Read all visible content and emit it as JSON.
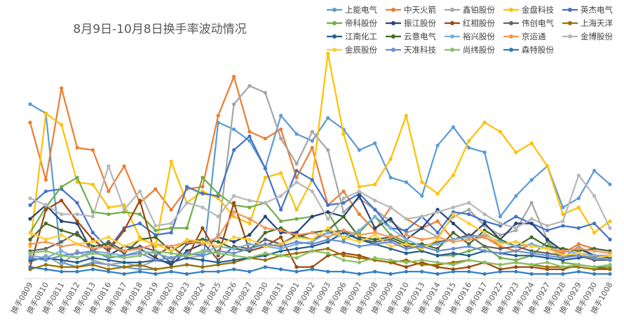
{
  "chart_data": {
    "type": "line",
    "title": "8月9日-10月8日换手率波动情况",
    "xlabel": "",
    "ylabel": "",
    "ylim": [
      0,
      1
    ],
    "grid": false,
    "legend": "top-right",
    "categories": [
      "换手0809",
      "换手0810",
      "换手0811",
      "换手0812",
      "换手0813",
      "换手0816",
      "换手0817",
      "换手0818",
      "换手0819",
      "换手0820",
      "换手0823",
      "换手0824",
      "换手0825",
      "换手0826",
      "换手0827",
      "换手0830",
      "换手0831",
      "换手0901",
      "换手0902",
      "换手0903",
      "换手0906",
      "换手0907",
      "换手0908",
      "换手0909",
      "换手0910",
      "换手0913",
      "换手0914",
      "换手0915",
      "换手0916",
      "换手0917",
      "换手0922",
      "换手0923",
      "换手0924",
      "换手0927",
      "换手0928",
      "换手0929",
      "换手0930",
      "换手1008"
    ],
    "series": [
      {
        "name": "上能电气",
        "color": "#5B9BD5",
        "values": [
          0.76,
          0.72,
          0.07,
          0.05,
          0.07,
          0.06,
          0.05,
          0.04,
          0.04,
          0.05,
          0.06,
          0.05,
          0.68,
          0.65,
          0.6,
          0.48,
          0.71,
          0.63,
          0.6,
          0.7,
          0.65,
          0.56,
          0.59,
          0.44,
          0.42,
          0.36,
          0.58,
          0.66,
          0.57,
          0.55,
          0.27,
          0.36,
          0.43,
          0.49,
          0.31,
          0.35,
          0.47,
          0.41
        ]
      },
      {
        "name": "中天火箭",
        "color": "#ED7D31",
        "values": [
          0.68,
          0.43,
          0.83,
          0.57,
          0.56,
          0.38,
          0.49,
          0.33,
          0.39,
          0.3,
          0.39,
          0.4,
          0.71,
          0.88,
          0.64,
          0.61,
          0.65,
          0.44,
          0.57,
          0.32,
          0.38,
          0.28,
          0.21,
          0.31,
          0.26,
          0.22,
          0.25,
          0.17,
          0.19,
          0.18,
          0.14,
          0.12,
          0.15,
          0.13,
          0.11,
          0.15,
          0.13,
          0.12
        ]
      },
      {
        "name": "鑫铂股份",
        "color": "#A5A5A5",
        "values": [
          0.07,
          0.1,
          0.06,
          0.12,
          0.08,
          0.06,
          0.07,
          0.05,
          0.08,
          0.07,
          0.09,
          0.1,
          0.19,
          0.76,
          0.84,
          0.81,
          0.61,
          0.5,
          0.64,
          0.56,
          0.29,
          0.35,
          0.3,
          0.25,
          0.2,
          0.22,
          0.18,
          0.27,
          0.3,
          0.23,
          0.19,
          0.21,
          0.33,
          0.17,
          0.09,
          0.14,
          0.1,
          0.08
        ]
      },
      {
        "name": "金盘科技",
        "color": "#FFC000",
        "values": [
          0.14,
          0.72,
          0.67,
          0.42,
          0.41,
          0.31,
          0.32,
          0.18,
          0.14,
          0.51,
          0.33,
          0.38,
          0.35,
          0.27,
          0.24,
          0.44,
          0.46,
          0.3,
          0.43,
          0.98,
          0.63,
          0.4,
          0.41,
          0.52,
          0.71,
          0.42,
          0.37,
          0.45,
          0.6,
          0.68,
          0.64,
          0.55,
          0.59,
          0.49,
          0.28,
          0.31,
          0.2,
          0.25
        ]
      },
      {
        "name": "英杰电气",
        "color": "#4472C4",
        "values": [
          0.32,
          0.38,
          0.39,
          0.33,
          0.2,
          0.13,
          0.22,
          0.24,
          0.19,
          0.2,
          0.4,
          0.37,
          0.36,
          0.56,
          0.62,
          0.48,
          0.3,
          0.47,
          0.43,
          0.32,
          0.33,
          0.37,
          0.3,
          0.22,
          0.21,
          0.27,
          0.2,
          0.29,
          0.28,
          0.25,
          0.23,
          0.27,
          0.24,
          0.21,
          0.23,
          0.22,
          0.24,
          0.17
        ]
      },
      {
        "name": "帝科股份",
        "color": "#70AD47",
        "values": [
          0.2,
          0.31,
          0.4,
          0.44,
          0.29,
          0.28,
          0.29,
          0.28,
          0.21,
          0.22,
          0.22,
          0.44,
          0.37,
          0.32,
          0.31,
          0.33,
          0.25,
          0.26,
          0.27,
          0.29,
          0.17,
          0.2,
          0.27,
          0.19,
          0.16,
          0.12,
          0.1,
          0.1,
          0.12,
          0.14,
          0.09,
          0.08,
          0.1,
          0.16,
          0.07,
          0.06,
          0.05,
          0.05
        ]
      },
      {
        "name": "振江股份",
        "color": "#264478",
        "values": [
          0.26,
          0.32,
          0.25,
          0.24,
          0.11,
          0.1,
          0.14,
          0.13,
          0.09,
          0.06,
          0.12,
          0.15,
          0.18,
          0.16,
          0.19,
          0.27,
          0.2,
          0.2,
          0.27,
          0.29,
          0.27,
          0.36,
          0.22,
          0.26,
          0.17,
          0.22,
          0.3,
          0.24,
          0.18,
          0.24,
          0.17,
          0.24,
          0.24,
          0.17,
          0.12,
          0.13,
          0.1,
          0.1
        ]
      },
      {
        "name": "红相股份",
        "color": "#9E480E",
        "values": [
          0.05,
          0.3,
          0.34,
          0.25,
          0.17,
          0.12,
          0.21,
          0.34,
          0.1,
          0.14,
          0.09,
          0.22,
          0.1,
          0.33,
          0.12,
          0.14,
          0.18,
          0.05,
          0.05,
          0.1,
          0.11,
          0.1,
          0.08,
          0.07,
          0.05,
          0.07,
          0.05,
          0.04,
          0.05,
          0.07,
          0.04,
          0.05,
          0.05,
          0.04,
          0.04,
          0.06,
          0.05,
          0.04
        ]
      },
      {
        "name": "伟创电气",
        "color": "#636363",
        "values": [
          0.12,
          0.13,
          0.16,
          0.2,
          0.12,
          0.16,
          0.12,
          0.14,
          0.12,
          0.07,
          0.15,
          0.16,
          0.08,
          0.14,
          0.13,
          0.17,
          0.15,
          0.19,
          0.17,
          0.2,
          0.21,
          0.17,
          0.16,
          0.17,
          0.14,
          0.14,
          0.16,
          0.17,
          0.19,
          0.14,
          0.13,
          0.14,
          0.12,
          0.11,
          0.1,
          0.1,
          0.08,
          0.08
        ]
      },
      {
        "name": "上海天洋",
        "color": "#997300",
        "values": [
          0.04,
          0.06,
          0.05,
          0.05,
          0.06,
          0.04,
          0.05,
          0.06,
          0.04,
          0.05,
          0.06,
          0.05,
          0.06,
          0.07,
          0.09,
          0.08,
          0.1,
          0.11,
          0.12,
          0.13,
          0.1,
          0.09,
          0.08,
          0.07,
          0.08,
          0.06,
          0.06,
          0.07,
          0.08,
          0.07,
          0.06,
          0.07,
          0.06,
          0.05,
          0.05,
          0.05,
          0.04,
          0.04
        ]
      },
      {
        "name": "江南化工",
        "color": "#255E91",
        "values": [
          0.08,
          0.09,
          0.08,
          0.07,
          0.09,
          0.08,
          0.07,
          0.07,
          0.08,
          0.07,
          0.09,
          0.08,
          0.07,
          0.08,
          0.09,
          0.1,
          0.12,
          0.13,
          0.14,
          0.16,
          0.2,
          0.17,
          0.15,
          0.13,
          0.11,
          0.12,
          0.1,
          0.11,
          0.1,
          0.12,
          0.11,
          0.1,
          0.1,
          0.09,
          0.08,
          0.09,
          0.1,
          0.09
        ]
      },
      {
        "name": "云意电气",
        "color": "#43682B",
        "values": [
          0.17,
          0.24,
          0.21,
          0.19,
          0.14,
          0.15,
          0.11,
          0.17,
          0.18,
          0.12,
          0.16,
          0.17,
          0.16,
          0.13,
          0.12,
          0.2,
          0.22,
          0.18,
          0.2,
          0.21,
          0.27,
          0.18,
          0.17,
          0.18,
          0.15,
          0.15,
          0.13,
          0.2,
          0.15,
          0.21,
          0.17,
          0.14,
          0.18,
          0.14,
          0.13,
          0.12,
          0.13,
          0.12
        ]
      },
      {
        "name": "裕兴股份",
        "color": "#7CAFDD",
        "values": [
          0.1,
          0.09,
          0.12,
          0.09,
          0.12,
          0.11,
          0.1,
          0.12,
          0.11,
          0.09,
          0.1,
          0.11,
          0.14,
          0.13,
          0.15,
          0.14,
          0.13,
          0.15,
          0.16,
          0.2,
          0.18,
          0.21,
          0.27,
          0.22,
          0.17,
          0.14,
          0.15,
          0.17,
          0.18,
          0.19,
          0.16,
          0.14,
          0.15,
          0.13,
          0.12,
          0.11,
          0.1,
          0.1
        ]
      },
      {
        "name": "京运通",
        "color": "#F1975A",
        "values": [
          0.15,
          0.16,
          0.14,
          0.15,
          0.13,
          0.14,
          0.12,
          0.13,
          0.15,
          0.14,
          0.16,
          0.15,
          0.18,
          0.29,
          0.26,
          0.22,
          0.21,
          0.19,
          0.2,
          0.18,
          0.21,
          0.19,
          0.2,
          0.18,
          0.19,
          0.17,
          0.18,
          0.16,
          0.17,
          0.18,
          0.15,
          0.16,
          0.14,
          0.13,
          0.12,
          0.13,
          0.12,
          0.11
        ]
      },
      {
        "name": "金博股份",
        "color": "#B7B7B7",
        "values": [
          0.35,
          0.32,
          0.28,
          0.28,
          0.27,
          0.49,
          0.3,
          0.38,
          0.23,
          0.24,
          0.33,
          0.31,
          0.27,
          0.36,
          0.34,
          0.33,
          0.36,
          0.42,
          0.38,
          0.26,
          0.35,
          0.38,
          0.34,
          0.31,
          0.26,
          0.27,
          0.29,
          0.31,
          0.33,
          0.28,
          0.24,
          0.22,
          0.26,
          0.23,
          0.25,
          0.45,
          0.36,
          0.22
        ]
      },
      {
        "name": "金辰股份",
        "color": "#FFCD33",
        "values": [
          0.2,
          0.17,
          0.19,
          0.15,
          0.16,
          0.18,
          0.14,
          0.17,
          0.15,
          0.12,
          0.17,
          0.16,
          0.14,
          0.18,
          0.17,
          0.14,
          0.15,
          0.18,
          0.17,
          0.22,
          0.18,
          0.16,
          0.19,
          0.14,
          0.15,
          0.13,
          0.17,
          0.28,
          0.24,
          0.2,
          0.15,
          0.16,
          0.14,
          0.13,
          0.1,
          0.11,
          0.09,
          0.1
        ]
      },
      {
        "name": "天准科技",
        "color": "#698ED0",
        "values": [
          0.09,
          0.08,
          0.1,
          0.11,
          0.12,
          0.09,
          0.1,
          0.11,
          0.08,
          0.09,
          0.11,
          0.1,
          0.12,
          0.11,
          0.13,
          0.15,
          0.14,
          0.16,
          0.15,
          0.17,
          0.16,
          0.14,
          0.15,
          0.16,
          0.13,
          0.14,
          0.12,
          0.13,
          0.14,
          0.12,
          0.11,
          0.12,
          0.11,
          0.1,
          0.09,
          0.1,
          0.09,
          0.08
        ]
      },
      {
        "name": "尚纬股份",
        "color": "#8CC168",
        "values": [
          0.11,
          0.12,
          0.1,
          0.09,
          0.11,
          0.1,
          0.09,
          0.1,
          0.12,
          0.11,
          0.1,
          0.12,
          0.11,
          0.1,
          0.09,
          0.11,
          0.1,
          0.09,
          0.12,
          0.11,
          0.08,
          0.07,
          0.09,
          0.08,
          0.07,
          0.08,
          0.07,
          0.06,
          0.08,
          0.07,
          0.06,
          0.07,
          0.06,
          0.07,
          0.05,
          0.06,
          0.05,
          0.06
        ]
      },
      {
        "name": "森特股份",
        "color": "#327DC2",
        "values": [
          0.05,
          0.04,
          0.03,
          0.03,
          0.04,
          0.03,
          0.02,
          0.03,
          0.02,
          0.03,
          0.02,
          0.03,
          0.03,
          0.04,
          0.03,
          0.05,
          0.04,
          0.03,
          0.04,
          0.03,
          0.03,
          0.02,
          0.03,
          0.02,
          0.03,
          0.03,
          0.02,
          0.03,
          0.03,
          0.02,
          0.03,
          0.03,
          0.02,
          0.02,
          0.02,
          0.03,
          0.02,
          0.02
        ]
      }
    ]
  }
}
